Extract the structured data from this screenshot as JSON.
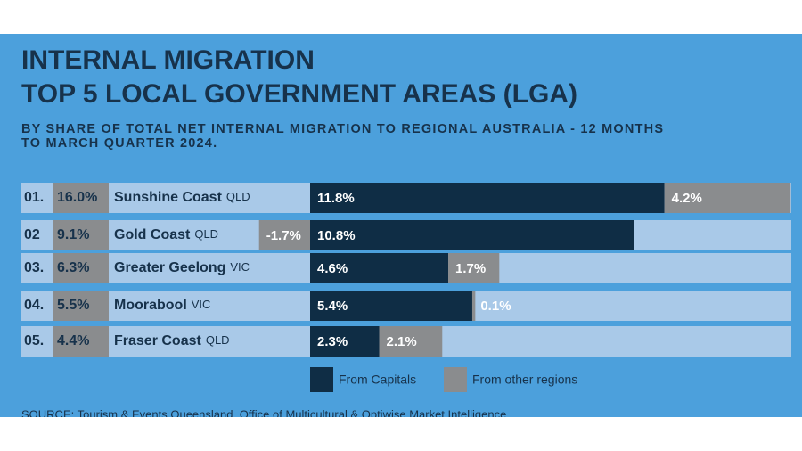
{
  "chart_data": {
    "type": "bar",
    "orientation": "horizontal",
    "stacked": true,
    "title_lines": [
      "INTERNAL MIGRATION",
      "TOP 5 LOCAL GOVERNMENT AREAS (LGA)"
    ],
    "subtitle_lines": [
      "BY SHARE OF TOTAL NET INTERNAL MIGRATION TO REGIONAL AUSTRALIA - 12 MONTHS",
      "TO MARCH QUARTER 2024."
    ],
    "ranks": [
      "01.",
      "02",
      "03.",
      "04.",
      "05."
    ],
    "categories": [
      "Sunshine Coast",
      "Gold Coast",
      "Greater Geelong",
      "Moorabool",
      "Fraser Coast"
    ],
    "states": [
      "QLD",
      "QLD",
      "VIC",
      "VIC",
      "QLD"
    ],
    "totals": {
      "values": [
        16.0,
        9.1,
        6.3,
        5.5,
        4.4
      ],
      "value_labels": [
        "16.0%",
        "9.1%",
        "6.3%",
        "5.5%",
        "4.4%"
      ]
    },
    "series": [
      {
        "name": "From Capitals",
        "color": "#0f2d45",
        "values": [
          11.8,
          10.8,
          4.6,
          5.4,
          2.3
        ],
        "value_labels": [
          "11.8%",
          "10.8%",
          "4.6%",
          "5.4%",
          "2.3%"
        ]
      },
      {
        "name": "From other regions",
        "color": "#8a8c8e",
        "values": [
          4.2,
          -1.7,
          1.7,
          0.1,
          2.1
        ],
        "value_labels": [
          "4.2%",
          "-1.7%",
          "1.7%",
          "0.1%",
          "2.1%"
        ]
      }
    ],
    "source": "SOURCE: Tourism & Events Queensland, Office of Multicultural & Optiwise Market Intelligence"
  }
}
